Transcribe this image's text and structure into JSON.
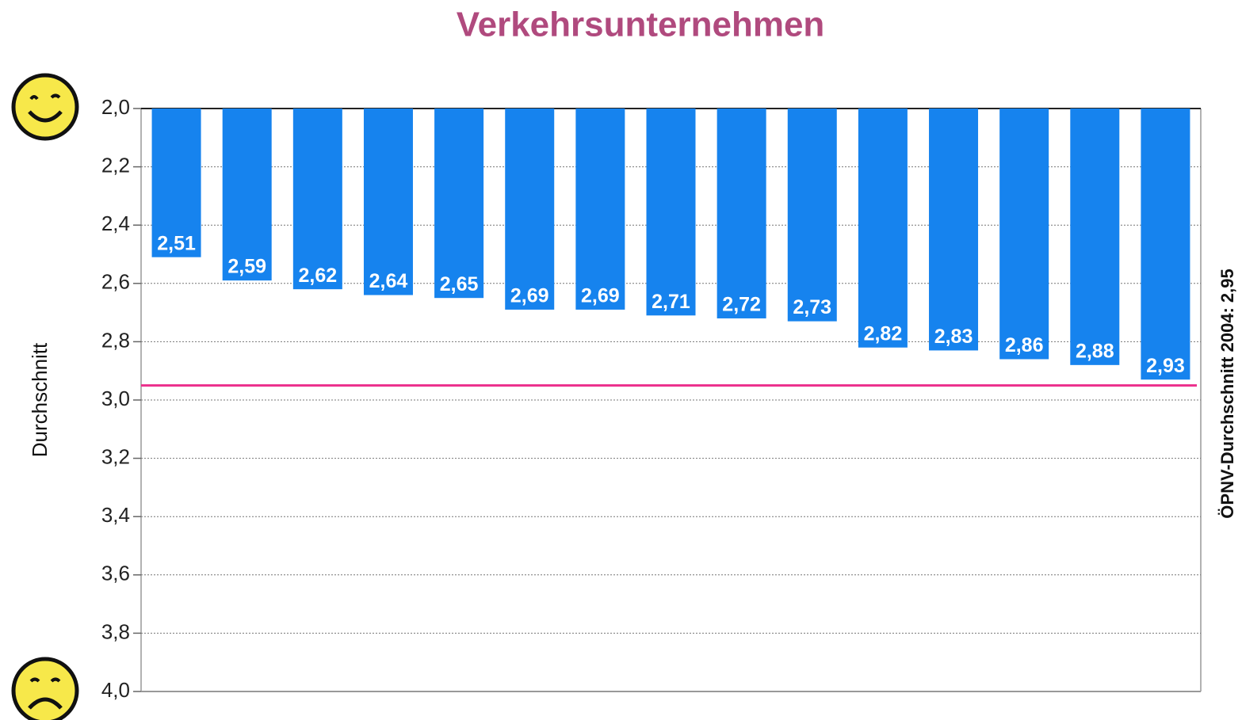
{
  "chart_data": {
    "type": "bar",
    "title": "Verkehrsunternehmen",
    "y_label": "Durchschnitt",
    "categories": [
      null,
      null,
      null,
      null,
      null,
      null,
      null,
      null,
      null,
      null,
      null,
      null,
      null,
      null,
      null
    ],
    "values": [
      2.51,
      2.59,
      2.62,
      2.64,
      2.65,
      2.69,
      2.69,
      2.71,
      2.72,
      2.73,
      2.82,
      2.83,
      2.86,
      2.88,
      2.93
    ],
    "value_labels": [
      "2,51",
      "2,59",
      "2,62",
      "2,64",
      "2,65",
      "2,69",
      "2,69",
      "2,71",
      "2,72",
      "2,73",
      "2,82",
      "2,83",
      "2,86",
      "2,88",
      "2,93"
    ],
    "color": "#1683ee",
    "ylim": [
      2.0,
      4.0
    ],
    "yreverse": true,
    "yticks": [
      {
        "value": 2.0,
        "label": "2,0"
      },
      {
        "value": 2.2,
        "label": "2,2"
      },
      {
        "value": 2.4,
        "label": "2,4"
      },
      {
        "value": 2.6,
        "label": "2,6"
      },
      {
        "value": 2.8,
        "label": "2,8"
      },
      {
        "value": 3.0,
        "label": "3,0"
      },
      {
        "value": 3.2,
        "label": "3,2"
      },
      {
        "value": 3.4,
        "label": "3,4"
      },
      {
        "value": 3.6,
        "label": "3,6"
      },
      {
        "value": 3.8,
        "label": "3,8"
      },
      {
        "value": 4.0,
        "label": "4,0"
      }
    ],
    "grid": true,
    "reference_line": {
      "value": 2.95,
      "label": "ÖPNV-Durchschnitt 2004: 2,95",
      "color": "#ec2f8c"
    }
  }
}
